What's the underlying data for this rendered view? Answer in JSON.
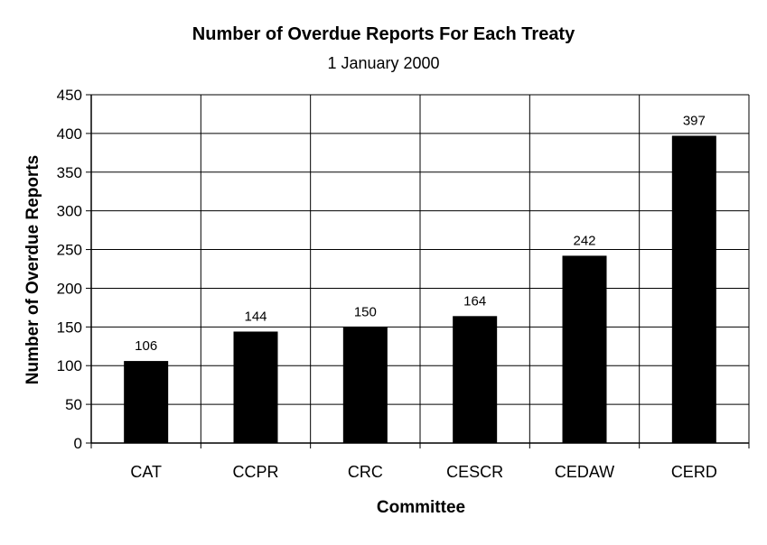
{
  "chart_data": {
    "type": "bar",
    "title": "Number of Overdue Reports For Each Treaty",
    "subtitle": "1 January 2000",
    "xlabel": "Committee",
    "ylabel": "Number of Overdue Reports",
    "categories": [
      "CAT",
      "CCPR",
      "CRC",
      "CESCR",
      "CEDAW",
      "CERD"
    ],
    "values": [
      106,
      144,
      150,
      164,
      242,
      397
    ],
    "data_labels": [
      "106",
      "144",
      "150",
      "164",
      "242",
      "397"
    ],
    "ylim": [
      0,
      450
    ],
    "yticks": [
      0,
      50,
      100,
      150,
      200,
      250,
      300,
      350,
      400,
      450
    ],
    "grid": true,
    "legend": "none",
    "bar_color": "#000000"
  }
}
